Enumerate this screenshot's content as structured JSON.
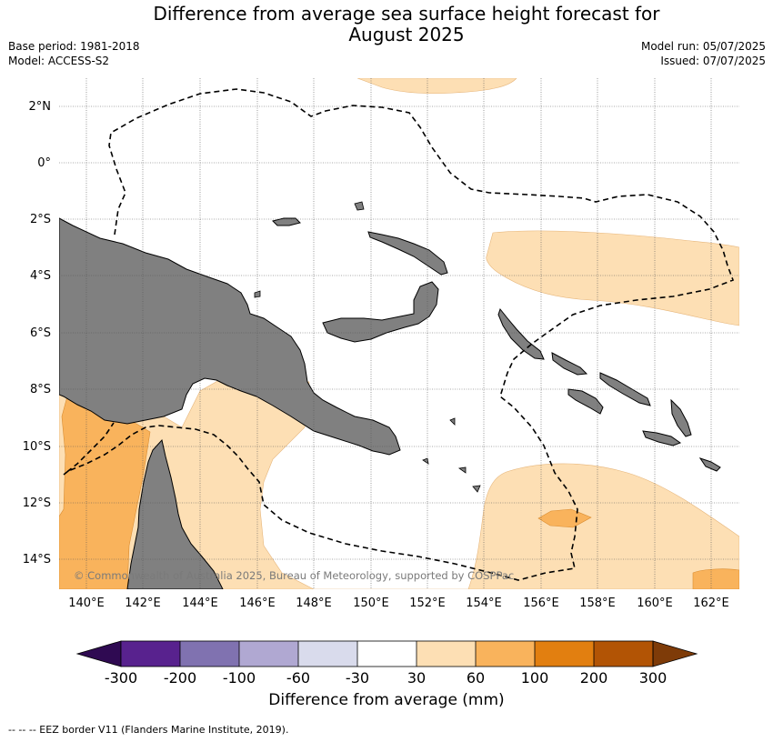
{
  "title": {
    "line1": "Difference from average sea surface height forecast for",
    "line2": "August 2025"
  },
  "meta": {
    "base_period": "Base period: 1981-2018",
    "model": "Model: ACCESS-S2",
    "model_run": "Model run: 05/07/2025",
    "issued": "Issued: 07/07/2025"
  },
  "map": {
    "lat_labels": [
      "2°N",
      "0°",
      "2°S",
      "4°S",
      "6°S",
      "8°S",
      "10°S",
      "12°S",
      "14°S"
    ],
    "lon_labels": [
      "140°E",
      "142°E",
      "144°E",
      "146°E",
      "148°E",
      "150°E",
      "152°E",
      "154°E",
      "156°E",
      "158°E",
      "160°E",
      "162°E"
    ],
    "copyright": "© Commonwealth of Australia 2025, Bureau of Meteorology, supported by COSPPac",
    "colors": {
      "land": "#808080",
      "band_30_60": "#fddfb4",
      "band_60_100": "#f9b35c",
      "band_100_200": "#e27f10",
      "eez": "#000000"
    }
  },
  "colorbar": {
    "title": "Difference from average (mm)",
    "ticks": [
      "-300",
      "-200",
      "-100",
      "-60",
      "-30",
      "30",
      "60",
      "100",
      "200",
      "300"
    ],
    "colors": [
      "#2f0a52",
      "#58228e",
      "#8072b0",
      "#b0a8d2",
      "#d9dbec",
      "#ffffff",
      "#fddfb4",
      "#f9b35c",
      "#e27f10",
      "#b25405",
      "#7e3b08"
    ]
  },
  "footnote": "--  --  -- EEZ border V11 (Flanders Marine Institute, 2019)."
}
